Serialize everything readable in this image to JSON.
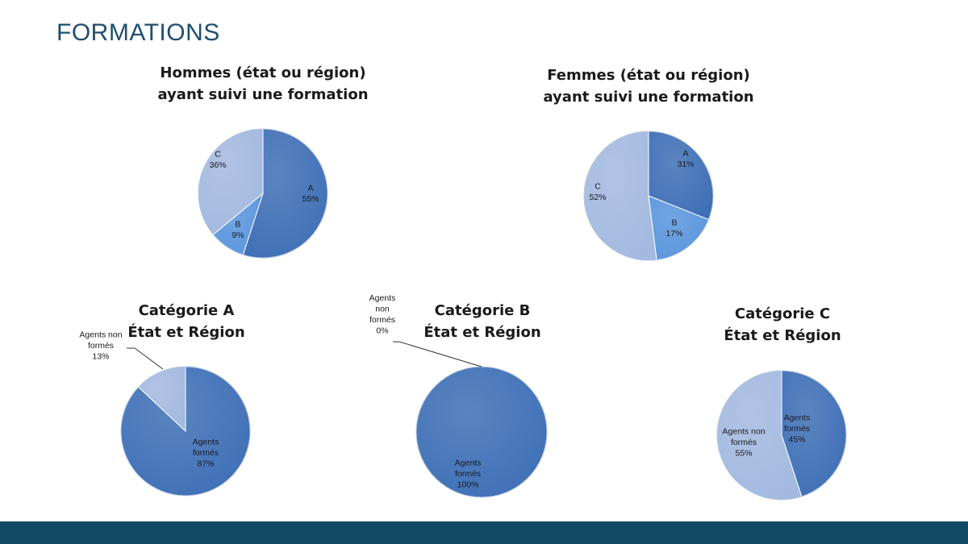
{
  "slide_title": "FORMATIONS",
  "colors": {
    "A": "#3e6fb6",
    "B": "#5a95dd",
    "C": "#a3b9e0",
    "formes": "#3e6fb6",
    "non_formes": "#a3b9e0",
    "footer": "#134a63",
    "title": "#1f4e6e"
  },
  "chart_data": [
    {
      "type": "pie",
      "title": [
        "Hommes (état ou région)",
        "ayant suivi une formation"
      ],
      "slices": [
        {
          "label": "A",
          "value": 55,
          "pct_text": "55%",
          "color_key": "A"
        },
        {
          "label": "B",
          "value": 9,
          "pct_text": "9%",
          "color_key": "B"
        },
        {
          "label": "C",
          "value": 36,
          "pct_text": "36%",
          "color_key": "C"
        }
      ]
    },
    {
      "type": "pie",
      "title": [
        "Femmes (état ou région)",
        "ayant suivi une formation"
      ],
      "slices": [
        {
          "label": "A",
          "value": 31,
          "pct_text": "31%",
          "color_key": "A"
        },
        {
          "label": "B",
          "value": 17,
          "pct_text": "17%",
          "color_key": "B"
        },
        {
          "label": "C",
          "value": 52,
          "pct_text": "52%",
          "color_key": "C"
        }
      ]
    },
    {
      "type": "pie",
      "title": [
        "Catégorie A",
        "État et Région"
      ],
      "slices": [
        {
          "label": "Agents formés",
          "value": 87,
          "pct_text": "87%",
          "color_key": "formes"
        },
        {
          "label": "Agents non formés",
          "value": 13,
          "pct_text": "13%",
          "color_key": "non_formes"
        }
      ]
    },
    {
      "type": "pie",
      "title": [
        "Catégorie B",
        "État et Région"
      ],
      "slices": [
        {
          "label": "Agents formés",
          "value": 100,
          "pct_text": "100%",
          "color_key": "formes"
        },
        {
          "label": "Agents non formés",
          "value": 0,
          "pct_text": "0%",
          "color_key": "non_formes"
        }
      ]
    },
    {
      "type": "pie",
      "title": [
        "Catégorie C",
        "État et Région"
      ],
      "slices": [
        {
          "label": "Agents formés",
          "value": 45,
          "pct_text": "45%",
          "color_key": "formes"
        },
        {
          "label": "Agents non formés",
          "value": 55,
          "pct_text": "55%",
          "color_key": "non_formes"
        }
      ]
    }
  ]
}
